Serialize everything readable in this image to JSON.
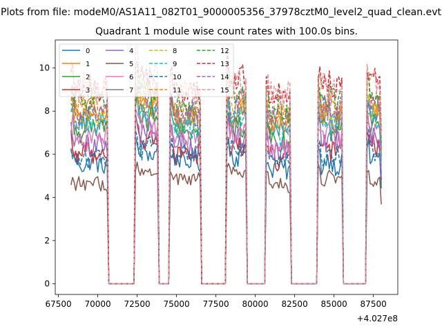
{
  "chart_data": {
    "type": "line",
    "suptitle": "Plots from file: modeM0/AS1A11_082T01_9000005356_37978cztM0_level2_quad_clean.evt",
    "title": "Quadrant 1 module wise count rates with 100.0s bins.",
    "xlabel": "",
    "ylabel": "",
    "x_offset_label": "+4.027e8",
    "xlim": [
      67300,
      89050
    ],
    "ylim": [
      -0.5,
      11.3
    ],
    "x_ticks": [
      67500,
      70000,
      72500,
      75000,
      77500,
      80000,
      82500,
      85000,
      87500
    ],
    "x_tick_labels": [
      "67500",
      "70000",
      "72500",
      "75000",
      "77500",
      "80000",
      "82500",
      "85000",
      "87500"
    ],
    "y_ticks": [
      0,
      2,
      4,
      6,
      8,
      10
    ],
    "y_tick_labels": [
      "0",
      "2",
      "4",
      "6",
      "8",
      "10"
    ],
    "legend_position": "upper-left",
    "legend_columns": 4,
    "x_range": [
      68300,
      88000
    ],
    "x_step": 100,
    "gaps": [
      [
        70700,
        72300
      ],
      [
        73900,
        74500
      ],
      [
        76600,
        78100
      ],
      [
        79500,
        80600
      ],
      [
        82300,
        83900
      ],
      [
        85600,
        87000
      ]
    ],
    "segments": [
      [
        68300,
        70600
      ],
      [
        72400,
        73800
      ],
      [
        74600,
        76500
      ],
      [
        78200,
        79400
      ],
      [
        80700,
        82200
      ],
      [
        84000,
        85500
      ],
      [
        87100,
        88000
      ]
    ],
    "series": [
      {
        "name": "0",
        "base": [
          5.6,
          6.1,
          5.7,
          6.0,
          5.4,
          5.6,
          5.9
        ],
        "noise": 0.45,
        "color": "#1f77b4",
        "style": "solid"
      },
      {
        "name": "1",
        "base": [
          8.0,
          8.3,
          7.6,
          7.9,
          7.4,
          7.8,
          7.9
        ],
        "noise": 0.55,
        "color": "#ff7f0e",
        "style": "solid"
      },
      {
        "name": "2",
        "base": [
          7.2,
          7.7,
          7.0,
          7.2,
          6.7,
          7.1,
          7.3
        ],
        "noise": 0.5,
        "color": "#2ca02c",
        "style": "solid"
      },
      {
        "name": "3",
        "base": [
          6.1,
          6.7,
          6.1,
          6.4,
          5.8,
          6.2,
          6.4
        ],
        "noise": 0.45,
        "color": "#d62728",
        "style": "solid"
      },
      {
        "name": "4",
        "base": [
          6.5,
          7.1,
          6.5,
          6.8,
          6.2,
          6.6,
          6.8
        ],
        "noise": 0.5,
        "color": "#9467bd",
        "style": "solid"
      },
      {
        "name": "5",
        "base": [
          4.6,
          5.1,
          4.8,
          5.1,
          4.6,
          4.9,
          4.9
        ],
        "noise": 0.3,
        "color": "#8c564b",
        "style": "solid"
      },
      {
        "name": "6",
        "base": [
          6.8,
          7.3,
          6.7,
          7.0,
          6.4,
          6.8,
          7.0
        ],
        "noise": 0.5,
        "color": "#e377c2",
        "style": "solid"
      },
      {
        "name": "7",
        "base": [
          7.6,
          8.2,
          7.5,
          7.7,
          7.2,
          7.6,
          7.8
        ],
        "noise": 0.5,
        "color": "#7f7f7f",
        "style": "solid"
      },
      {
        "name": "8",
        "base": [
          7.9,
          8.4,
          7.7,
          8.2,
          7.6,
          8.0,
          8.1
        ],
        "noise": 0.5,
        "color": "#bcbd22",
        "style": "dashed"
      },
      {
        "name": "9",
        "base": [
          7.4,
          8.0,
          7.3,
          7.6,
          7.0,
          7.4,
          7.6
        ],
        "noise": 0.5,
        "color": "#17becf",
        "style": "dashed"
      },
      {
        "name": "10",
        "base": [
          5.8,
          6.3,
          5.9,
          6.2,
          5.6,
          5.9,
          6.1
        ],
        "noise": 0.45,
        "color": "#1f77b4",
        "style": "dashed"
      },
      {
        "name": "11",
        "base": [
          8.2,
          8.8,
          8.0,
          8.4,
          7.8,
          8.2,
          8.4
        ],
        "noise": 0.55,
        "color": "#ff7f0e",
        "style": "dashed"
      },
      {
        "name": "12",
        "base": [
          8.5,
          9.1,
          8.3,
          8.7,
          8.1,
          8.6,
          8.7
        ],
        "noise": 0.55,
        "color": "#2ca02c",
        "style": "dashed"
      },
      {
        "name": "13",
        "base": [
          9.0,
          9.6,
          8.9,
          9.5,
          8.8,
          9.2,
          9.5
        ],
        "noise": 0.55,
        "color": "#d62728",
        "style": "dashed"
      },
      {
        "name": "14",
        "base": [
          8.0,
          8.6,
          7.9,
          8.3,
          7.7,
          8.1,
          8.3
        ],
        "noise": 0.5,
        "color": "#9467bd",
        "style": "dashed"
      },
      {
        "name": "15",
        "base": [
          9.1,
          9.5,
          8.8,
          9.2,
          8.6,
          9.0,
          9.2
        ],
        "noise": 0.6,
        "color": "#e7969c",
        "style": "dashed"
      }
    ]
  }
}
